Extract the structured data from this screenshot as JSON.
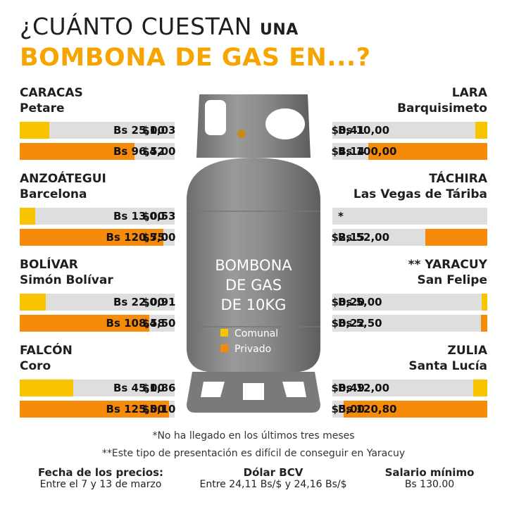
{
  "title": {
    "line1_main": "¿CUÁNTO CUESTAN",
    "line1_small": "UNA",
    "line2": "BOMBONA DE GAS EN...?"
  },
  "cylinder": {
    "line1": "BOMBONA",
    "line2": "DE GAS",
    "line3": "DE 10KG"
  },
  "legend": {
    "comunal": "Comunal",
    "privado": "Privado"
  },
  "colors": {
    "comunal": "#f8c400",
    "privado": "#f58a0b",
    "track": "#dedede",
    "title_accent": "#f6a500",
    "cylinder": "#8c8c8c"
  },
  "chart_data": {
    "type": "bar",
    "title": "¿CUÁNTO CUESTAN UNA BOMBONA DE GAS EN...?",
    "series": [
      {
        "name": "Comunal"
      },
      {
        "name": "Privado"
      }
    ],
    "regions": [
      {
        "state": "CARACAS",
        "city": "Petare",
        "comunal": {
          "bs_label": "Bs 25,00",
          "bs": 25.0,
          "usd_label": "$1,03",
          "usd": 1.03
        },
        "privado": {
          "bs_label": "Bs 96,52",
          "bs": 96.52,
          "usd_label": "$4,00",
          "usd": 4.0
        }
      },
      {
        "state": "ANZOÁTEGUI",
        "city": "Barcelona",
        "comunal": {
          "bs_label": "Bs 13,00",
          "bs": 13.0,
          "usd_label": "$0,53",
          "usd": 0.53
        },
        "privado": {
          "bs_label": "Bs 120,75",
          "bs": 120.75,
          "usd_label": "$5,00",
          "usd": 5.0
        }
      },
      {
        "state": "BOLÍVAR",
        "city": "Simón Bolívar",
        "comunal": {
          "bs_label": "Bs 22,00",
          "bs": 22.0,
          "usd_label": "$0,91",
          "usd": 0.91
        },
        "privado": {
          "bs_label": "Bs 108,58",
          "bs": 108.58,
          "usd_label": "$4,50",
          "usd": 4.5
        }
      },
      {
        "state": "FALCÓN",
        "city": "Coro",
        "comunal": {
          "bs_label": "Bs 45,00",
          "bs": 45.0,
          "usd_label": "$1,86",
          "usd": 1.86
        },
        "privado": {
          "bs_label": "Bs 125,00",
          "bs": 125.0,
          "usd_label": "$5,10",
          "usd": 5.1
        }
      },
      {
        "state": "LARA",
        "city": "Barquisimeto",
        "comunal": {
          "bs_label": "Bs 10,00",
          "bs": 10.0,
          "usd_label": "$0,41",
          "usd": 0.41
        },
        "privado": {
          "bs_label": "Bs 100,00",
          "bs": 100.0,
          "usd_label": "$4,14",
          "usd": 4.14
        }
      },
      {
        "state": "TÁCHIRA",
        "city": "Las Vegas de Táriba",
        "comunal": {
          "bs_label": "*",
          "bs": null,
          "usd_label": "",
          "usd": null
        },
        "privado": {
          "bs_label": "Bs 52,00",
          "bs": 52.0,
          "usd_label": "$2,15",
          "usd": 2.15
        }
      },
      {
        "state": "** YARACUY",
        "city": "San Felipe",
        "comunal": {
          "bs_label": "Bs 5,00",
          "bs": 5.0,
          "usd_label": "$0,20",
          "usd": 0.2
        },
        "privado": {
          "bs_label": "Bs 5,50",
          "bs": 5.5,
          "usd_label": "$0,22",
          "usd": 0.22
        }
      },
      {
        "state": "ZULIA",
        "city": "Santa Lucía",
        "comunal": {
          "bs_label": "Bs 12,00",
          "bs": 12.0,
          "usd_label": "$0,49",
          "usd": 0.49
        },
        "privado": {
          "bs_label": "Bs 120,80",
          "bs": 120.8,
          "usd_label": "$5,00",
          "usd": 5.0
        }
      }
    ]
  },
  "notes": {
    "n1": "*No ha llegado en los últimos tres meses",
    "n2": "**Este tipo de presentación es difícil de conseguir en Yaracuy"
  },
  "footer": {
    "fecha_label": "Fecha de los precios:",
    "fecha_value": "Entre el 7 y 13 de marzo",
    "dolar_label": "Dólar BCV",
    "dolar_value": "Entre 24,11 Bs/$ y 24,16 Bs/$",
    "salario_label": "Salario mínimo",
    "salario_value": "Bs 130.00"
  }
}
